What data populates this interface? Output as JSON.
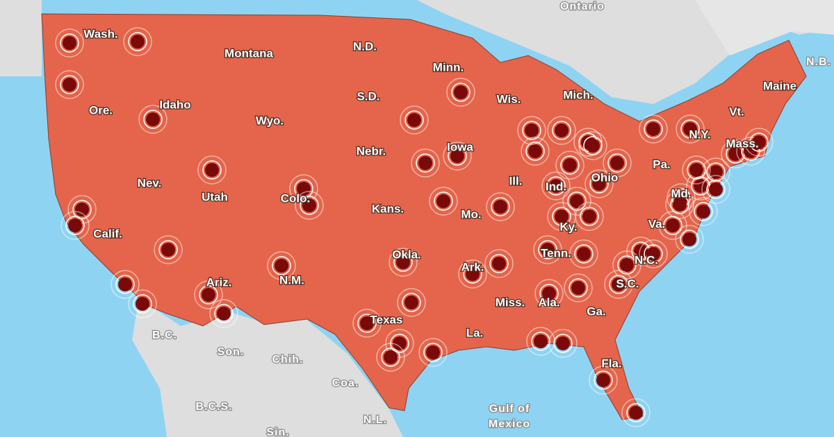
{
  "labels": [
    {
      "text": "Ontario",
      "kind": "foreign"
    },
    {
      "text": "Wash.",
      "kind": "state"
    },
    {
      "text": "Montana",
      "kind": "state"
    },
    {
      "text": "N.D.",
      "kind": "state"
    },
    {
      "text": "Minn.",
      "kind": "state"
    },
    {
      "text": "Maine",
      "kind": "state"
    },
    {
      "text": "N.B.",
      "kind": "foreign"
    },
    {
      "text": "Mich.",
      "kind": "state"
    },
    {
      "text": "Wis.",
      "kind": "state"
    },
    {
      "text": "S.D.",
      "kind": "state"
    },
    {
      "text": "Vt.",
      "kind": "state"
    },
    {
      "text": "Ore.",
      "kind": "state"
    },
    {
      "text": "Idaho",
      "kind": "state"
    },
    {
      "text": "Wyo.",
      "kind": "state"
    },
    {
      "text": "N.Y.",
      "kind": "state"
    },
    {
      "text": "Mass.",
      "kind": "state"
    },
    {
      "text": "Nebr.",
      "kind": "state"
    },
    {
      "text": "Iowa",
      "kind": "state"
    },
    {
      "text": "Pa.",
      "kind": "state"
    },
    {
      "text": "Nev.",
      "kind": "state"
    },
    {
      "text": "Utah",
      "kind": "state"
    },
    {
      "text": "Colo.",
      "kind": "state"
    },
    {
      "text": "Ill.",
      "kind": "state"
    },
    {
      "text": "Ind.",
      "kind": "state"
    },
    {
      "text": "Ohio",
      "kind": "state"
    },
    {
      "text": "Kans.",
      "kind": "state"
    },
    {
      "text": "Mo.",
      "kind": "state"
    },
    {
      "text": "Md.",
      "kind": "state"
    },
    {
      "text": "Va.",
      "kind": "state"
    },
    {
      "text": "Calif.",
      "kind": "state"
    },
    {
      "text": "Ky.",
      "kind": "state"
    },
    {
      "text": "Okla.",
      "kind": "state"
    },
    {
      "text": "Tenn.",
      "kind": "state"
    },
    {
      "text": "N.C.",
      "kind": "state"
    },
    {
      "text": "Ariz.",
      "kind": "state"
    },
    {
      "text": "N.M.",
      "kind": "state"
    },
    {
      "text": "Ark.",
      "kind": "state"
    },
    {
      "text": "S.C.",
      "kind": "state"
    },
    {
      "text": "Miss.",
      "kind": "state"
    },
    {
      "text": "Ala.",
      "kind": "state"
    },
    {
      "text": "Ga.",
      "kind": "state"
    },
    {
      "text": "Texas",
      "kind": "state"
    },
    {
      "text": "La.",
      "kind": "state"
    },
    {
      "text": "Fla.",
      "kind": "state"
    },
    {
      "text": "B.C.",
      "kind": "foreign"
    },
    {
      "text": "Son.",
      "kind": "foreign"
    },
    {
      "text": "Chih.",
      "kind": "foreign"
    },
    {
      "text": "Coa.",
      "kind": "foreign"
    },
    {
      "text": "B.C.S.",
      "kind": "foreign"
    },
    {
      "text": "N.L.",
      "kind": "foreign"
    },
    {
      "text": "Sin.",
      "kind": "foreign"
    },
    {
      "text": "Gulf of",
      "kind": "foreign"
    },
    {
      "text": "Mexico",
      "kind": "foreign"
    }
  ]
}
